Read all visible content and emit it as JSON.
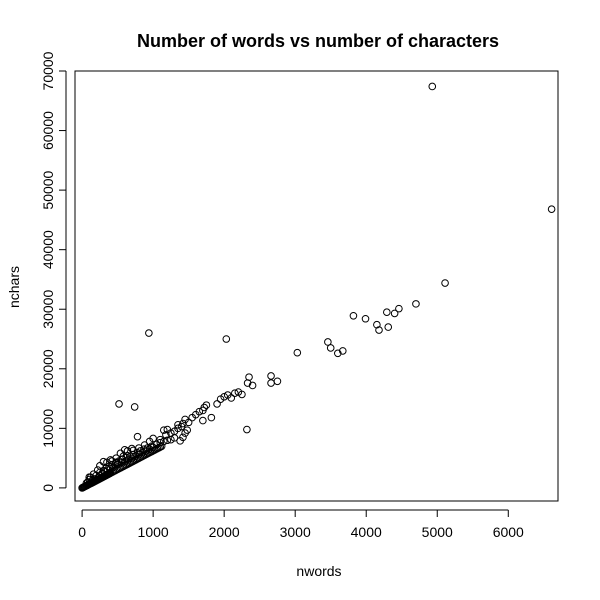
{
  "chart_data": {
    "type": "scatter",
    "title": "Number of words vs number of characters",
    "xlabel": "nwords",
    "ylabel": "nchars",
    "xlim": [
      -100,
      6700
    ],
    "ylim": [
      -2200,
      70000
    ],
    "xticks": [
      0,
      1000,
      2000,
      3000,
      4000,
      5000,
      6000
    ],
    "yticks": [
      0,
      10000,
      20000,
      30000,
      40000,
      50000,
      60000,
      70000
    ],
    "xtick_labels": [
      "0",
      "1000",
      "2000",
      "3000",
      "4000",
      "5000",
      "6000"
    ],
    "ytick_labels": [
      "0",
      "10000",
      "20000",
      "30000",
      "40000",
      "50000",
      "60000",
      "70000"
    ],
    "grid": false,
    "legend": "none",
    "marker": "open-circle",
    "points": [
      [
        0,
        0
      ],
      [
        10,
        60
      ],
      [
        20,
        120
      ],
      [
        30,
        180
      ],
      [
        40,
        250
      ],
      [
        50,
        300
      ],
      [
        60,
        380
      ],
      [
        70,
        420
      ],
      [
        80,
        500
      ],
      [
        90,
        560
      ],
      [
        100,
        620
      ],
      [
        110,
        680
      ],
      [
        120,
        740
      ],
      [
        130,
        800
      ],
      [
        140,
        860
      ],
      [
        150,
        920
      ],
      [
        160,
        990
      ],
      [
        170,
        1050
      ],
      [
        180,
        1110
      ],
      [
        190,
        1170
      ],
      [
        200,
        1240
      ],
      [
        210,
        1300
      ],
      [
        220,
        1360
      ],
      [
        230,
        1420
      ],
      [
        240,
        1490
      ],
      [
        250,
        1550
      ],
      [
        260,
        1610
      ],
      [
        270,
        1670
      ],
      [
        280,
        1740
      ],
      [
        290,
        1800
      ],
      [
        300,
        1860
      ],
      [
        310,
        1920
      ],
      [
        320,
        1990
      ],
      [
        330,
        2050
      ],
      [
        340,
        2110
      ],
      [
        350,
        2180
      ],
      [
        360,
        2240
      ],
      [
        370,
        2300
      ],
      [
        380,
        2360
      ],
      [
        390,
        2430
      ],
      [
        400,
        2490
      ],
      [
        420,
        2610
      ],
      [
        440,
        2740
      ],
      [
        460,
        2860
      ],
      [
        480,
        2990
      ],
      [
        500,
        3110
      ],
      [
        520,
        3240
      ],
      [
        540,
        3360
      ],
      [
        560,
        3490
      ],
      [
        580,
        3610
      ],
      [
        600,
        3740
      ],
      [
        620,
        3860
      ],
      [
        640,
        3990
      ],
      [
        660,
        4110
      ],
      [
        680,
        4240
      ],
      [
        700,
        4360
      ],
      [
        720,
        4490
      ],
      [
        740,
        4610
      ],
      [
        760,
        4740
      ],
      [
        780,
        4860
      ],
      [
        800,
        4990
      ],
      [
        820,
        5110
      ],
      [
        840,
        5240
      ],
      [
        860,
        5360
      ],
      [
        880,
        5490
      ],
      [
        900,
        5610
      ],
      [
        920,
        5740
      ],
      [
        940,
        5860
      ],
      [
        960,
        5990
      ],
      [
        980,
        6110
      ],
      [
        1000,
        6240
      ],
      [
        1020,
        6360
      ],
      [
        1040,
        6490
      ],
      [
        1060,
        6610
      ],
      [
        1080,
        6740
      ],
      [
        1100,
        6860
      ],
      [
        1120,
        6990
      ],
      [
        60,
        800
      ],
      [
        80,
        1000
      ],
      [
        100,
        1400
      ],
      [
        120,
        1800
      ],
      [
        150,
        1200
      ],
      [
        180,
        1500
      ],
      [
        200,
        2100
      ],
      [
        230,
        1800
      ],
      [
        250,
        2600
      ],
      [
        280,
        2400
      ],
      [
        300,
        2900
      ],
      [
        320,
        2700
      ],
      [
        340,
        3300
      ],
      [
        360,
        3000
      ],
      [
        380,
        3600
      ],
      [
        400,
        3200
      ],
      [
        420,
        3900
      ],
      [
        450,
        3500
      ],
      [
        470,
        4200
      ],
      [
        500,
        3900
      ],
      [
        520,
        4500
      ],
      [
        550,
        4200
      ],
      [
        570,
        4800
      ],
      [
        600,
        4400
      ],
      [
        620,
        5100
      ],
      [
        650,
        4700
      ],
      [
        680,
        5300
      ],
      [
        700,
        5000
      ],
      [
        720,
        5600
      ],
      [
        750,
        5300
      ],
      [
        780,
        5900
      ],
      [
        800,
        5600
      ],
      [
        820,
        6200
      ],
      [
        850,
        5900
      ],
      [
        870,
        6500
      ],
      [
        900,
        6200
      ],
      [
        920,
        6700
      ],
      [
        950,
        6500
      ],
      [
        980,
        7000
      ],
      [
        1000,
        6800
      ],
      [
        100,
        1800
      ],
      [
        150,
        1400
      ],
      [
        350,
        4300
      ],
      [
        420,
        4500
      ],
      [
        480,
        4300
      ],
      [
        560,
        4800
      ],
      [
        640,
        5400
      ],
      [
        720,
        6300
      ],
      [
        800,
        6700
      ],
      [
        880,
        7200
      ],
      [
        1050,
        7300
      ],
      [
        1100,
        7600
      ],
      [
        1150,
        7800
      ],
      [
        1200,
        8000
      ],
      [
        1250,
        8100
      ],
      [
        1300,
        8400
      ],
      [
        1100,
        8100
      ],
      [
        1000,
        8300
      ],
      [
        950,
        7800
      ],
      [
        1180,
        8900
      ],
      [
        1250,
        9200
      ],
      [
        1300,
        9500
      ],
      [
        1150,
        9700
      ],
      [
        1200,
        9800
      ],
      [
        1350,
        10000
      ],
      [
        1380,
        7900
      ],
      [
        1420,
        8500
      ],
      [
        1450,
        9200
      ],
      [
        1480,
        9700
      ],
      [
        1400,
        10300
      ],
      [
        1350,
        10600
      ],
      [
        1420,
        10800
      ],
      [
        1500,
        11000
      ],
      [
        1450,
        11500
      ],
      [
        1550,
        11800
      ],
      [
        1600,
        12300
      ],
      [
        1650,
        12800
      ],
      [
        1700,
        13000
      ],
      [
        1720,
        13500
      ],
      [
        1750,
        13900
      ],
      [
        1700,
        11300
      ],
      [
        1820,
        11800
      ],
      [
        1900,
        14100
      ],
      [
        1950,
        14900
      ],
      [
        2000,
        15300
      ],
      [
        2050,
        15600
      ],
      [
        2100,
        15100
      ],
      [
        2150,
        15900
      ],
      [
        2200,
        16100
      ],
      [
        2250,
        15700
      ],
      [
        2330,
        17600
      ],
      [
        2350,
        18600
      ],
      [
        2400,
        17200
      ],
      [
        2320,
        9800
      ],
      [
        2660,
        18800
      ],
      [
        2660,
        17600
      ],
      [
        2750,
        17900
      ],
      [
        3030,
        22700
      ],
      [
        3460,
        24500
      ],
      [
        3500,
        23500
      ],
      [
        3600,
        22600
      ],
      [
        3670,
        23000
      ],
      [
        3820,
        28900
      ],
      [
        3990,
        28400
      ],
      [
        4150,
        27400
      ],
      [
        4180,
        26500
      ],
      [
        4290,
        29500
      ],
      [
        4310,
        27000
      ],
      [
        4400,
        29300
      ],
      [
        4460,
        30100
      ],
      [
        4700,
        30900
      ],
      [
        5110,
        34400
      ],
      [
        4930,
        67400
      ],
      [
        6610,
        46800
      ],
      [
        940,
        26000
      ],
      [
        2030,
        25000
      ],
      [
        520,
        14100
      ],
      [
        740,
        13600
      ],
      [
        780,
        8600
      ],
      [
        580,
        5300
      ],
      [
        300,
        4400
      ],
      [
        400,
        4700
      ],
      [
        480,
        5000
      ],
      [
        540,
        5800
      ],
      [
        600,
        6400
      ],
      [
        640,
        6200
      ],
      [
        700,
        6600
      ],
      [
        250,
        3700
      ],
      [
        220,
        3000
      ],
      [
        160,
        2300
      ]
    ]
  }
}
